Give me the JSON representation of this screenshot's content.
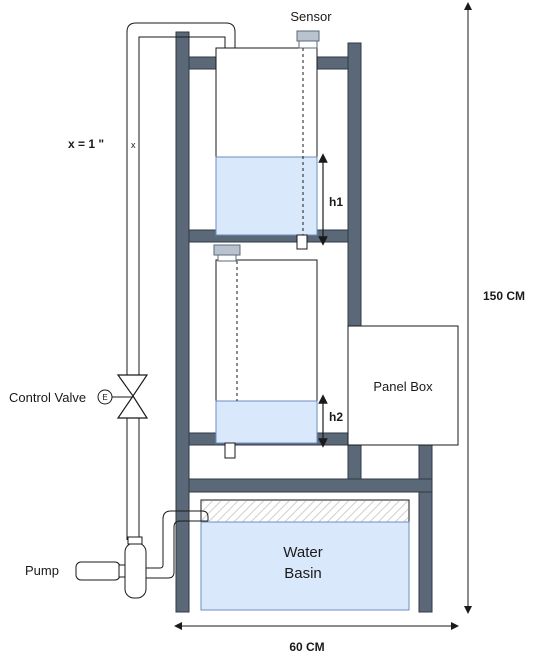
{
  "labels": {
    "sensor": "Sensor",
    "pipe_size": "x = 1 \"",
    "pipe_mark": "x",
    "h1": "h1",
    "h2": "h2",
    "height_dim": "150 CM",
    "width_dim": "60 CM",
    "panel_box": "Panel Box",
    "control_valve": "Control Valve",
    "valve_symbol": "E",
    "pump": "Pump",
    "water_basin_line1": "Water",
    "water_basin_line2": "Basin"
  },
  "colors": {
    "frame": "#5b6877",
    "water": "#dae8fc",
    "water_border": "#6c8ebf",
    "line": "#1a1a1a",
    "sensor": "#b8c3cf"
  }
}
